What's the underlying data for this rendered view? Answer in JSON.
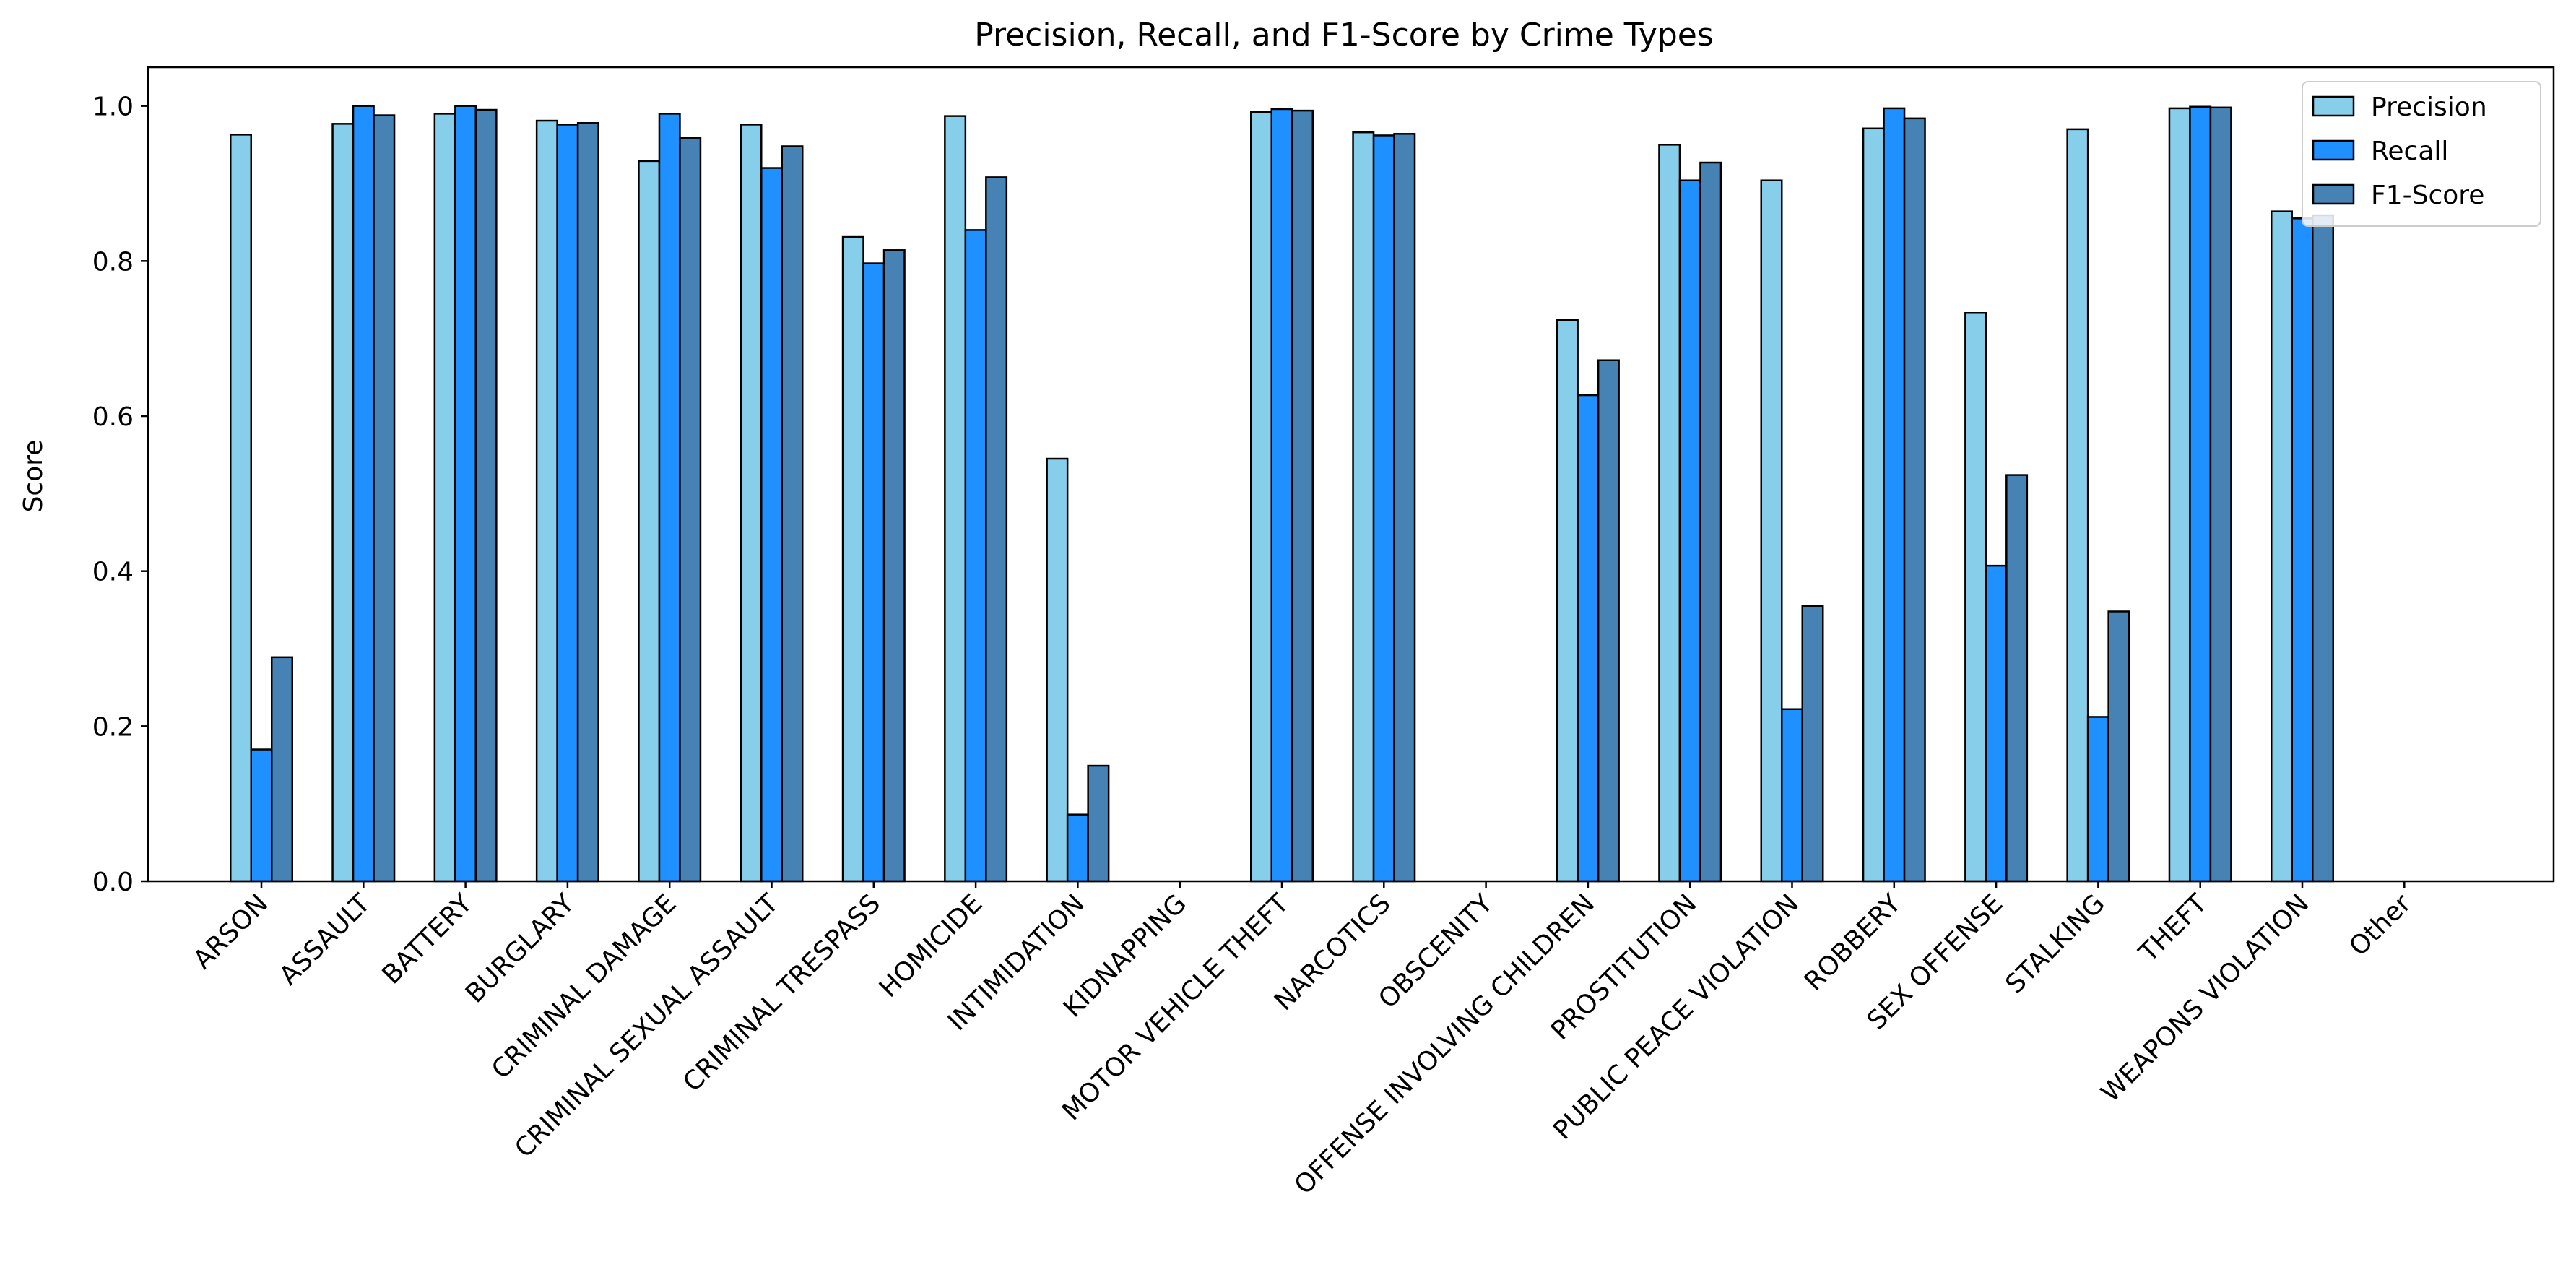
{
  "chart_data": {
    "type": "bar",
    "title": "Precision, Recall, and F1-Score by Crime Types",
    "xlabel": "",
    "ylabel": "Score",
    "ylim": [
      0,
      1.05
    ],
    "yticks": [
      0.0,
      0.2,
      0.4,
      0.6,
      0.8,
      1.0
    ],
    "ytick_labels": [
      "0.0",
      "0.2",
      "0.4",
      "0.6",
      "0.8",
      "1.0"
    ],
    "grid": false,
    "legend_position": "top-right",
    "categories": [
      "ARSON",
      "ASSAULT",
      "BATTERY",
      "BURGLARY",
      "CRIMINAL DAMAGE",
      "CRIMINAL SEXUAL ASSAULT",
      "CRIMINAL TRESPASS",
      "HOMICIDE",
      "INTIMIDATION",
      "KIDNAPPING",
      "MOTOR VEHICLE THEFT",
      "NARCOTICS",
      "OBSCENITY",
      "OFFENSE INVOLVING CHILDREN",
      "PROSTITUTION",
      "PUBLIC PEACE VIOLATION",
      "ROBBERY",
      "SEX OFFENSE",
      "STALKING",
      "THEFT",
      "WEAPONS VIOLATION",
      "Other"
    ],
    "series": [
      {
        "name": "Precision",
        "color": "#87ceeb",
        "values": [
          0.963,
          0.977,
          0.99,
          0.981,
          0.929,
          0.976,
          0.831,
          0.987,
          0.545,
          0.0,
          0.992,
          0.966,
          0.0,
          0.724,
          0.95,
          0.904,
          0.971,
          0.733,
          0.97,
          0.997,
          0.864,
          0.0
        ]
      },
      {
        "name": "Recall",
        "color": "#1e90ff",
        "values": [
          0.17,
          1.0,
          1.0,
          0.976,
          0.99,
          0.92,
          0.797,
          0.84,
          0.086,
          0.0,
          0.996,
          0.962,
          0.0,
          0.627,
          0.904,
          0.222,
          0.997,
          0.407,
          0.212,
          0.999,
          0.855,
          0.0
        ]
      },
      {
        "name": "F1-Score",
        "color": "#4682b4",
        "values": [
          0.289,
          0.988,
          0.995,
          0.978,
          0.959,
          0.948,
          0.814,
          0.908,
          0.149,
          0.0,
          0.994,
          0.964,
          0.0,
          0.672,
          0.927,
          0.355,
          0.984,
          0.524,
          0.348,
          0.998,
          0.859,
          0.0
        ]
      }
    ]
  }
}
